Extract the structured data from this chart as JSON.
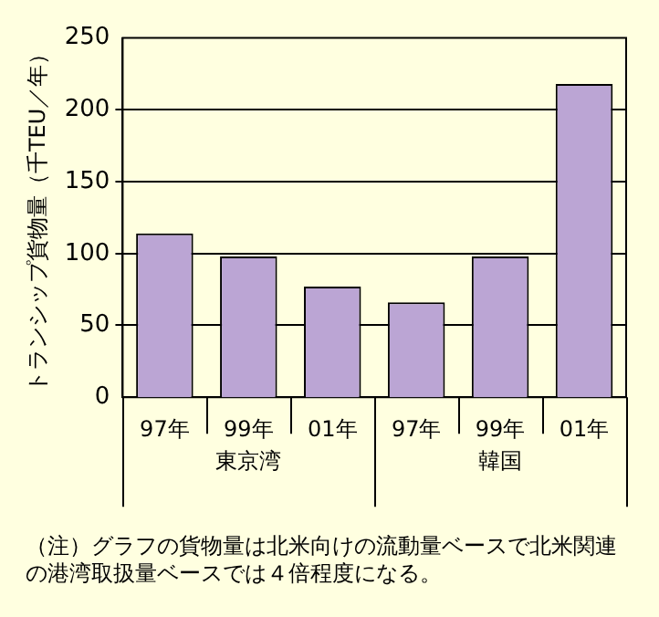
{
  "chart_data": {
    "type": "bar",
    "ylabel": "トランシップ貨物量（千TEU／年）",
    "categories": [
      "97年",
      "99年",
      "01年",
      "97年",
      "99年",
      "01年"
    ],
    "values": [
      114,
      98,
      77,
      66,
      98,
      218
    ],
    "color": "#bba5d4",
    "ylim": [
      0,
      250
    ],
    "yticks": [
      0,
      50,
      100,
      150,
      200,
      250
    ],
    "grid": "y",
    "legend": false,
    "annotations": [
      "東京湾",
      "韓国",
      "（注）グラフの貨物量は北米向けの流動量ベースで北米関連の港湾取扱量ベースでは４倍程度になる。"
    ]
  }
}
